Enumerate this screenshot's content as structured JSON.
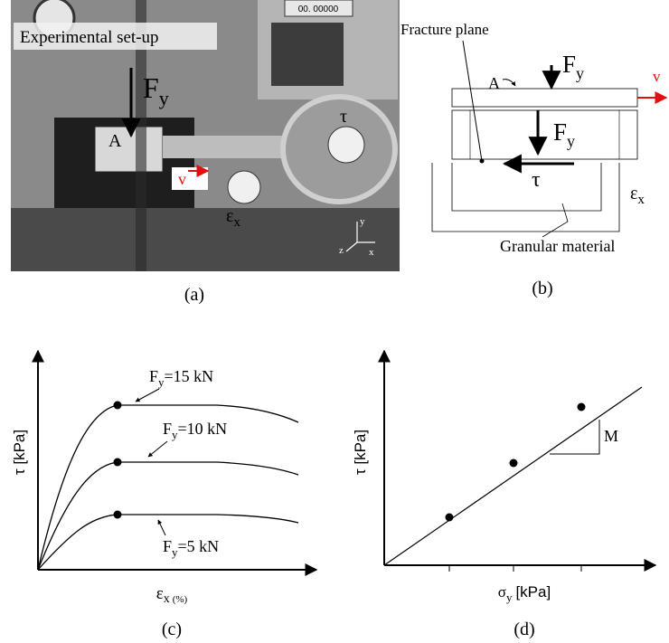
{
  "photo": {
    "caption": "(a)",
    "title": "Experimental set-up",
    "display": "00. 00000",
    "force": {
      "symbol": "F",
      "sub": "y"
    },
    "area": "A",
    "velocity": "v",
    "shear": "τ",
    "strain": {
      "symbol": "ε",
      "sub": "x"
    },
    "axes": [
      "y",
      "z",
      "x"
    ]
  },
  "setup_diagram": {
    "caption": "(b)",
    "fracture_plane": "Fracture plane",
    "area": "A",
    "force_top": {
      "symbol": "F",
      "sub": "y"
    },
    "velocity": "v",
    "force_mid": {
      "symbol": "F",
      "sub": "y"
    },
    "shear": "τ",
    "strain": {
      "symbol": "ε",
      "sub": "x"
    },
    "material": "Granular material"
  },
  "stress_strain": {
    "caption": "(c)",
    "y_label": "τ [kPa]",
    "x_label": {
      "symbol": "ε",
      "sub": "x",
      "unit": "(%)"
    },
    "curves": [
      {
        "symbol": "F",
        "sub": "y",
        "label": "=15 kN"
      },
      {
        "symbol": "F",
        "sub": "y",
        "label": "=10 kN"
      },
      {
        "symbol": "F",
        "sub": "y",
        "label": "=5 kN"
      }
    ]
  },
  "failure_envelope": {
    "caption": "(d)",
    "y_label": "τ [kPa]",
    "x_label": {
      "symbol": "σ",
      "sub": "y",
      "unit": "[kPa]"
    },
    "slope": "M"
  }
}
